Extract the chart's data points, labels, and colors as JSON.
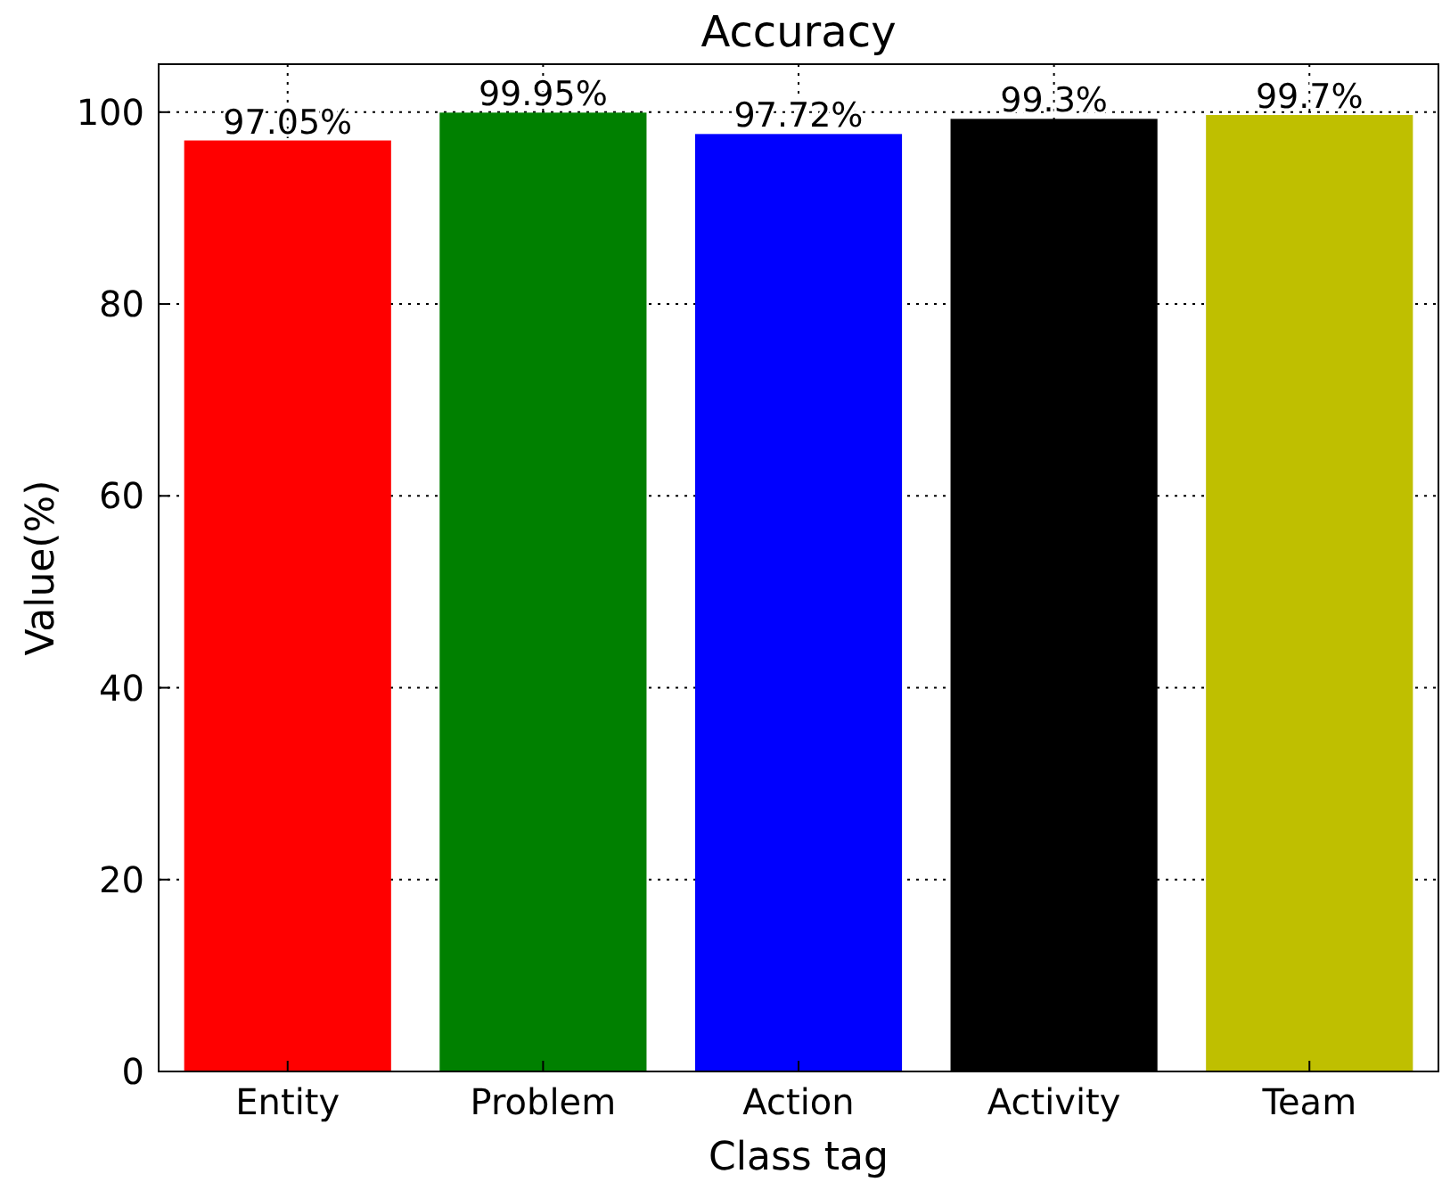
{
  "chart_data": {
    "type": "bar",
    "title": "Accuracy",
    "xlabel": "Class tag",
    "ylabel": "Value(%)",
    "categories": [
      "Entity",
      "Problem",
      "Action",
      "Activity",
      "Team"
    ],
    "values": [
      97.05,
      99.95,
      97.72,
      99.3,
      99.7
    ],
    "colors": [
      "#ff0000",
      "#008000",
      "#0000ff",
      "#000000",
      "#bfbf00"
    ],
    "value_labels": [
      "97.05%",
      "99.95%",
      "97.72%",
      "99.3%",
      "99.7%"
    ],
    "ylim": [
      0,
      105
    ],
    "yticks": [
      0,
      20,
      40,
      60,
      80,
      100
    ],
    "grid": true
  }
}
